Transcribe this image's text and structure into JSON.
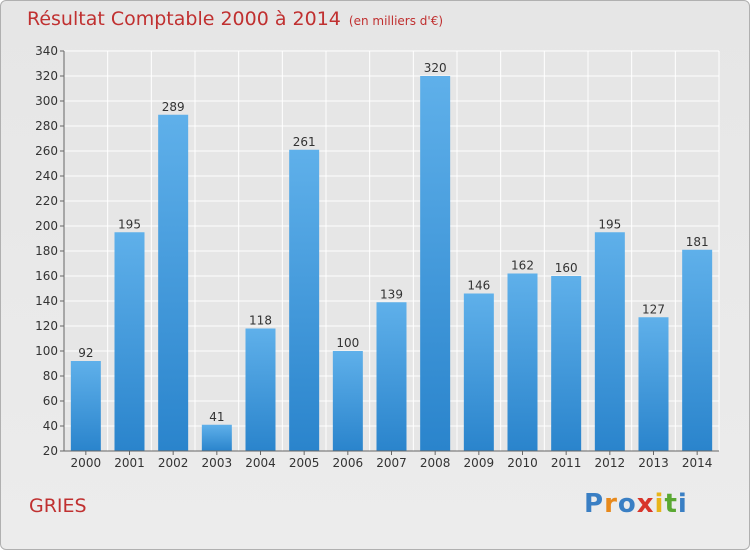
{
  "header": {
    "title": "Résultat Comptable 2000 à 2014",
    "unit": "(en milliers d'€)"
  },
  "footer": {
    "place": "GRIES",
    "logo": "Proxiti"
  },
  "colors": {
    "title": "#c03030",
    "bar_light": "#5fb0ea",
    "bar_dark": "#2a84cc",
    "grid": "#ffffff",
    "plot_bg": "#e6e6e6"
  },
  "chart_data": {
    "type": "bar",
    "title": "Résultat Comptable 2000 à 2014",
    "subtitle": "(en milliers d'€)",
    "xlabel": "",
    "ylabel": "",
    "categories": [
      "2000",
      "2001",
      "2002",
      "2003",
      "2004",
      "2005",
      "2006",
      "2007",
      "2008",
      "2009",
      "2010",
      "2011",
      "2012",
      "2013",
      "2014"
    ],
    "values": [
      92,
      195,
      289,
      41,
      118,
      261,
      100,
      139,
      320,
      146,
      162,
      160,
      195,
      127,
      181
    ],
    "ylim": [
      20,
      340
    ],
    "yticks": [
      20,
      40,
      60,
      80,
      100,
      120,
      140,
      160,
      180,
      200,
      220,
      240,
      260,
      280,
      300,
      320,
      340
    ],
    "grid": true
  }
}
